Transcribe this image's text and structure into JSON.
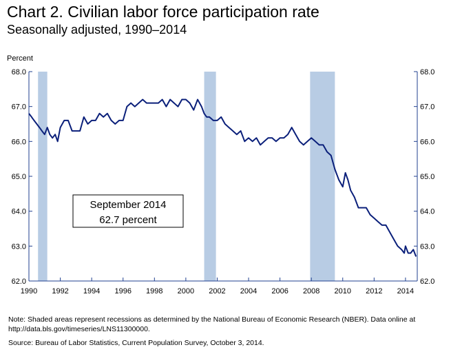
{
  "chart_data": {
    "type": "line",
    "title": "Chart 2.  Civilian labor force participation rate",
    "subtitle": "Seasonally adjusted, 1990–2014",
    "ylabel": "Percent",
    "xlabel": "",
    "ylim": [
      62.0,
      68.0
    ],
    "xlim": [
      1990,
      2014.75
    ],
    "y_ticks": [
      "62.0",
      "63.0",
      "64.0",
      "65.0",
      "66.0",
      "67.0",
      "68.0"
    ],
    "x_ticks": [
      "1990",
      "1992",
      "1994",
      "1996",
      "1998",
      "2000",
      "2002",
      "2004",
      "2006",
      "2008",
      "2010",
      "2012",
      "2014"
    ],
    "right_axis_mirrors_left": true,
    "grid": false,
    "line_color": "#0a1f7a",
    "recession_color": "#b8cce4",
    "recessions": [
      [
        1990.58,
        1991.17
      ],
      [
        2001.17,
        2001.92
      ],
      [
        2007.92,
        2009.5
      ]
    ],
    "series": [
      {
        "x": [
          1990.0,
          1990.17,
          1990.33,
          1990.5,
          1990.67,
          1990.83,
          1991.0,
          1991.17,
          1991.33,
          1991.5,
          1991.67,
          1991.83,
          1992.0,
          1992.25,
          1992.5,
          1992.75,
          1993.0,
          1993.25,
          1993.5,
          1993.75,
          1994.0,
          1994.25,
          1994.5,
          1994.75,
          1995.0,
          1995.25,
          1995.5,
          1995.75,
          1996.0,
          1996.25,
          1996.5,
          1996.75,
          1997.0,
          1997.25,
          1997.5,
          1997.75,
          1998.0,
          1998.25,
          1998.5,
          1998.75,
          1999.0,
          1999.25,
          1999.5,
          1999.75,
          2000.0,
          2000.25,
          2000.5,
          2000.75,
          2001.0,
          2001.17,
          2001.33,
          2001.5,
          2001.75,
          2002.0,
          2002.25,
          2002.5,
          2002.75,
          2003.0,
          2003.25,
          2003.5,
          2003.75,
          2004.0,
          2004.25,
          2004.5,
          2004.75,
          2005.0,
          2005.25,
          2005.5,
          2005.75,
          2006.0,
          2006.25,
          2006.5,
          2006.75,
          2007.0,
          2007.25,
          2007.5,
          2007.75,
          2008.0,
          2008.25,
          2008.5,
          2008.75,
          2009.0,
          2009.25,
          2009.5,
          2009.75,
          2010.0,
          2010.17,
          2010.33,
          2010.5,
          2010.75,
          2011.0,
          2011.25,
          2011.5,
          2011.75,
          2012.0,
          2012.25,
          2012.5,
          2012.75,
          2013.0,
          2013.25,
          2013.5,
          2013.75,
          2013.92,
          2014.0,
          2014.17,
          2014.33,
          2014.5,
          2014.67
        ],
        "values": [
          66.8,
          66.7,
          66.6,
          66.5,
          66.4,
          66.3,
          66.2,
          66.4,
          66.2,
          66.1,
          66.2,
          66.0,
          66.4,
          66.6,
          66.6,
          66.3,
          66.3,
          66.3,
          66.7,
          66.5,
          66.6,
          66.6,
          66.8,
          66.7,
          66.8,
          66.6,
          66.5,
          66.6,
          66.6,
          67.0,
          67.1,
          67.0,
          67.1,
          67.2,
          67.1,
          67.1,
          67.1,
          67.1,
          67.2,
          67.0,
          67.2,
          67.1,
          67.0,
          67.2,
          67.2,
          67.1,
          66.9,
          67.2,
          67.0,
          66.8,
          66.7,
          66.7,
          66.6,
          66.6,
          66.7,
          66.5,
          66.4,
          66.3,
          66.2,
          66.3,
          66.0,
          66.1,
          66.0,
          66.1,
          65.9,
          66.0,
          66.1,
          66.1,
          66.0,
          66.1,
          66.1,
          66.2,
          66.4,
          66.2,
          66.0,
          65.9,
          66.0,
          66.1,
          66.0,
          65.9,
          65.9,
          65.7,
          65.6,
          65.2,
          64.9,
          64.7,
          65.1,
          64.9,
          64.6,
          64.4,
          64.1,
          64.1,
          64.1,
          63.9,
          63.8,
          63.7,
          63.6,
          63.6,
          63.4,
          63.2,
          63.0,
          62.9,
          62.8,
          63.0,
          62.8,
          62.8,
          62.9,
          62.7
        ]
      }
    ],
    "annotation": {
      "line1": "September 2014",
      "line2": "62.7 percent"
    }
  },
  "footer": {
    "note": "Note:  Shaded areas represent recessions as determined by the National Bureau of Economic Research (NBER).  Data online at http://data.bls.gov/timeseries/LNS11300000.",
    "source": "Source:  Bureau of Labor Statistics, Current Population Survey, October 3, 2014."
  }
}
